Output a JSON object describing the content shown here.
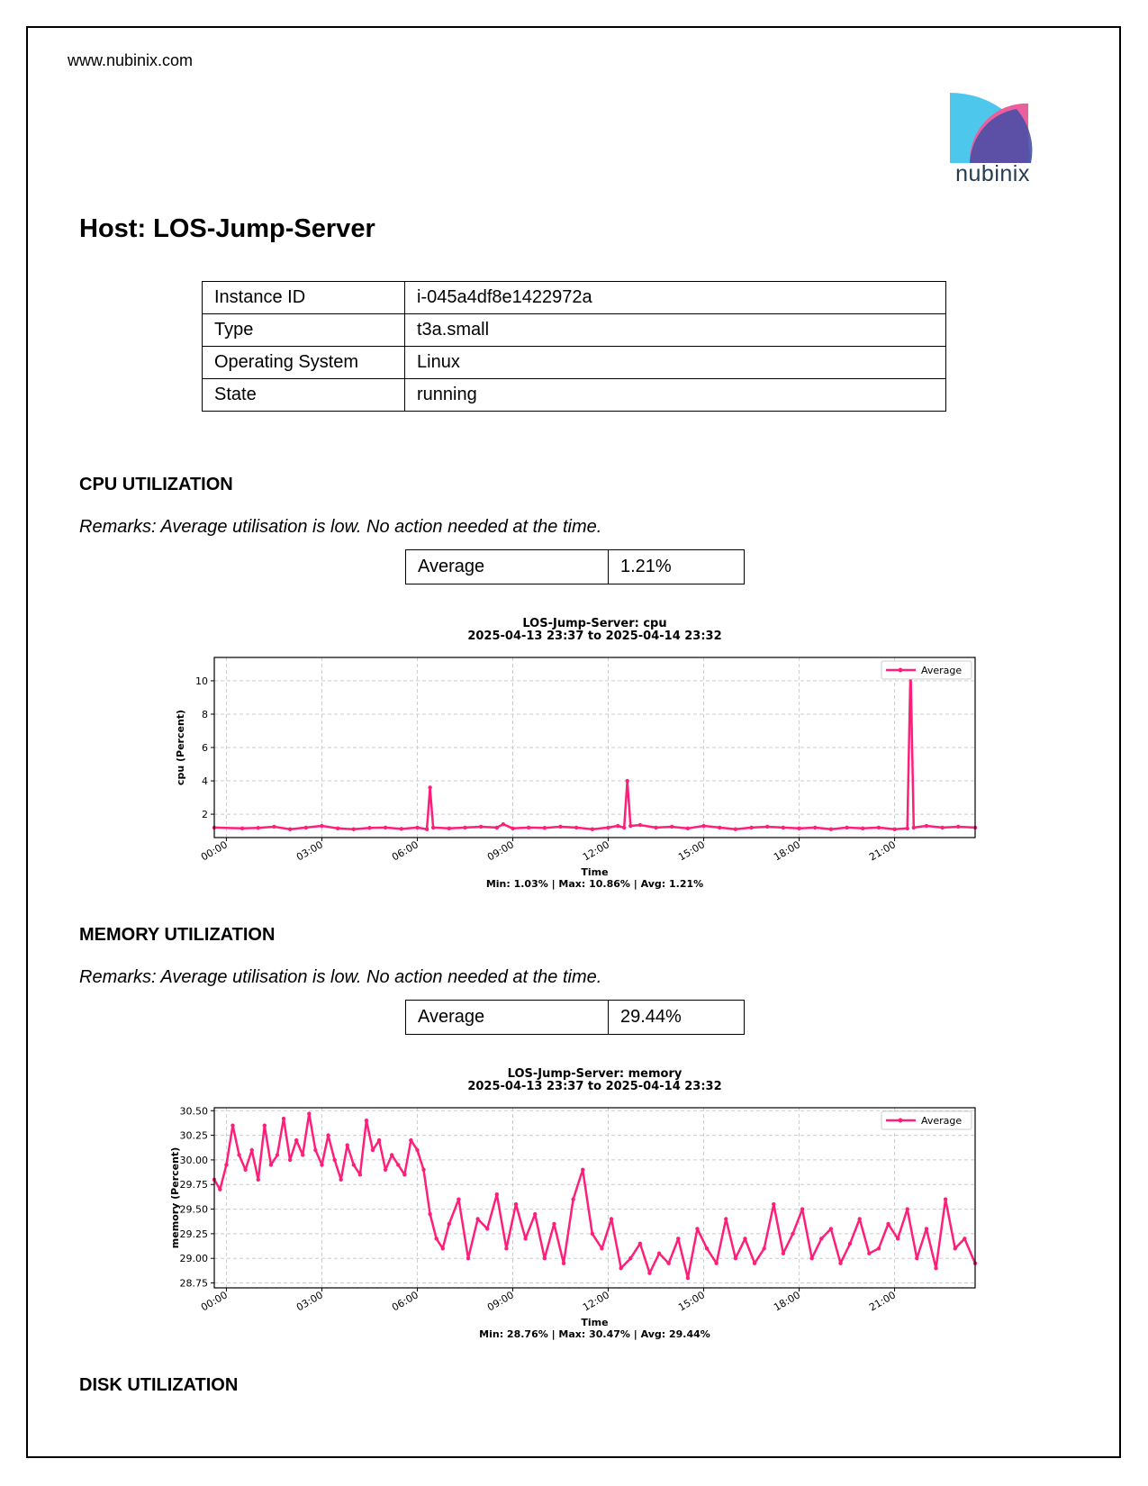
{
  "header": {
    "website": "www.nubinix.com",
    "logo_text": "nubinix"
  },
  "host": {
    "title": "Host: LOS-Jump-Server",
    "rows": [
      {
        "key": "Instance ID",
        "value": "i-045a4df8e1422972a"
      },
      {
        "key": "Type",
        "value": "t3a.small"
      },
      {
        "key": "Operating System",
        "value": "Linux"
      },
      {
        "key": "State",
        "value": "running"
      }
    ]
  },
  "cpu": {
    "heading": "CPU UTILIZATION",
    "remarks": "Remarks: Average utilisation is low. No action needed at the time.",
    "average_label": "Average",
    "average_value": "1.21%"
  },
  "memory": {
    "heading": "MEMORY UTILIZATION",
    "remarks": "Remarks: Average utilisation is low. No action needed at the time.",
    "average_label": "Average",
    "average_value": "29.44%"
  },
  "disk": {
    "heading": "DISK UTILIZATION"
  },
  "colors": {
    "series": "#ff1f7a",
    "grid": "#cccccc",
    "logo_blue": "#4ec7ec",
    "logo_pink": "#e9609c",
    "logo_purple": "#4b4fa6"
  },
  "chart_data": [
    {
      "type": "line",
      "title": "LOS-Jump-Server: cpu",
      "subtitle": "2025-04-13 23:37 to 2025-04-14 23:32",
      "xlabel": "Time",
      "ylabel": "cpu (Percent)",
      "footer": "Min: 1.03% | Max: 10.86% | Avg: 1.21%",
      "x_ticks": [
        "00:00",
        "03:00",
        "06:00",
        "09:00",
        "12:00",
        "15:00",
        "18:00",
        "21:00"
      ],
      "y_ticks": [
        2,
        4,
        6,
        8,
        10
      ],
      "ylim": [
        0.6,
        11.4
      ],
      "xlim_hours": [
        -0.38,
        23.53
      ],
      "legend": "top-right",
      "grid": true,
      "series": [
        {
          "name": "Average",
          "x_hours": [
            -0.38,
            0.5,
            1,
            1.5,
            2,
            2.5,
            3,
            3.5,
            4,
            4.5,
            5,
            5.5,
            6,
            6.3,
            6.4,
            6.5,
            7,
            7.5,
            8,
            8.5,
            8.7,
            9,
            9.5,
            10,
            10.5,
            11,
            11.5,
            12,
            12.3,
            12.5,
            12.6,
            12.7,
            13,
            13.5,
            14,
            14.5,
            15,
            15.5,
            16,
            16.5,
            17,
            17.5,
            18,
            18.5,
            19,
            19.5,
            20,
            20.5,
            21,
            21.4,
            21.5,
            21.6,
            22,
            22.5,
            23,
            23.53
          ],
          "values": [
            1.2,
            1.15,
            1.18,
            1.25,
            1.1,
            1.2,
            1.3,
            1.15,
            1.1,
            1.18,
            1.2,
            1.12,
            1.2,
            1.1,
            3.6,
            1.2,
            1.15,
            1.2,
            1.25,
            1.2,
            1.4,
            1.15,
            1.2,
            1.18,
            1.25,
            1.2,
            1.1,
            1.2,
            1.3,
            1.2,
            4.0,
            1.3,
            1.35,
            1.2,
            1.25,
            1.15,
            1.3,
            1.2,
            1.1,
            1.2,
            1.25,
            1.2,
            1.15,
            1.2,
            1.1,
            1.2,
            1.15,
            1.2,
            1.1,
            1.15,
            10.86,
            1.2,
            1.3,
            1.2,
            1.25,
            1.2
          ]
        }
      ]
    },
    {
      "type": "line",
      "title": "LOS-Jump-Server: memory",
      "subtitle": "2025-04-13 23:37 to 2025-04-14 23:32",
      "xlabel": "Time",
      "ylabel": "memory (Percent)",
      "footer": "Min: 28.76% | Max: 30.47% | Avg: 29.44%",
      "x_ticks": [
        "00:00",
        "03:00",
        "06:00",
        "09:00",
        "12:00",
        "15:00",
        "18:00",
        "21:00"
      ],
      "y_ticks": [
        "28.75",
        "29.00",
        "29.25",
        "29.50",
        "29.75",
        "30.00",
        "30.25",
        "30.50"
      ],
      "ylim": [
        28.7,
        30.53
      ],
      "xlim_hours": [
        -0.38,
        23.53
      ],
      "legend": "top-right",
      "grid": true,
      "series": [
        {
          "name": "Average",
          "x_hours": [
            -0.38,
            -0.2,
            0,
            0.2,
            0.4,
            0.6,
            0.8,
            1.0,
            1.2,
            1.4,
            1.6,
            1.8,
            2.0,
            2.2,
            2.4,
            2.6,
            2.8,
            3.0,
            3.2,
            3.4,
            3.6,
            3.8,
            4.0,
            4.2,
            4.4,
            4.6,
            4.8,
            5.0,
            5.2,
            5.4,
            5.6,
            5.8,
            6.0,
            6.2,
            6.4,
            6.6,
            6.8,
            7.0,
            7.3,
            7.6,
            7.9,
            8.2,
            8.5,
            8.8,
            9.1,
            9.4,
            9.7,
            10.0,
            10.3,
            10.6,
            10.9,
            11.2,
            11.5,
            11.8,
            12.1,
            12.4,
            12.7,
            13.0,
            13.3,
            13.6,
            13.9,
            14.2,
            14.5,
            14.8,
            15.1,
            15.4,
            15.7,
            16.0,
            16.3,
            16.6,
            16.9,
            17.2,
            17.5,
            17.8,
            18.1,
            18.4,
            18.7,
            19.0,
            19.3,
            19.6,
            19.9,
            20.2,
            20.5,
            20.8,
            21.1,
            21.4,
            21.7,
            22.0,
            22.3,
            22.6,
            22.9,
            23.2,
            23.53
          ],
          "values": [
            29.8,
            29.7,
            29.95,
            30.35,
            30.05,
            29.9,
            30.1,
            29.8,
            30.35,
            29.95,
            30.05,
            30.42,
            30.0,
            30.2,
            30.05,
            30.47,
            30.1,
            29.95,
            30.25,
            30.0,
            29.8,
            30.15,
            29.95,
            29.85,
            30.4,
            30.1,
            30.2,
            29.9,
            30.05,
            29.95,
            29.85,
            30.2,
            30.1,
            29.9,
            29.45,
            29.2,
            29.1,
            29.35,
            29.6,
            29.0,
            29.4,
            29.3,
            29.65,
            29.1,
            29.55,
            29.2,
            29.45,
            29.0,
            29.35,
            28.95,
            29.6,
            29.9,
            29.25,
            29.1,
            29.4,
            28.9,
            29.0,
            29.15,
            28.85,
            29.05,
            28.95,
            29.2,
            28.8,
            29.3,
            29.1,
            28.95,
            29.4,
            29.0,
            29.2,
            28.95,
            29.1,
            29.55,
            29.05,
            29.25,
            29.5,
            29.0,
            29.2,
            29.3,
            28.95,
            29.15,
            29.4,
            29.05,
            29.1,
            29.35,
            29.2,
            29.5,
            29.0,
            29.3,
            28.9,
            29.6,
            29.1,
            29.2,
            28.95
          ]
        }
      ]
    }
  ]
}
